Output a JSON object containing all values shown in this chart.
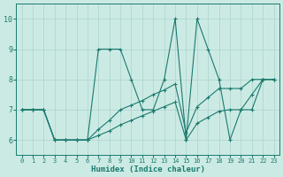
{
  "xlabel": "Humidex (Indice chaleur)",
  "xlim": [
    -0.5,
    23.5
  ],
  "ylim": [
    5.5,
    10.5
  ],
  "yticks": [
    6,
    7,
    8,
    9,
    10
  ],
  "xticks": [
    0,
    1,
    2,
    3,
    4,
    5,
    6,
    7,
    8,
    9,
    10,
    11,
    12,
    13,
    14,
    15,
    16,
    17,
    18,
    19,
    20,
    21,
    22,
    23
  ],
  "bg_color": "#cceae4",
  "line_color": "#1a7a6e",
  "grid_color": "#aad4cc",
  "line1_x": [
    0,
    1,
    2,
    3,
    4,
    5,
    6,
    7,
    8,
    9,
    10,
    11,
    12,
    13,
    14,
    15,
    16,
    17,
    18,
    19,
    20,
    21,
    22,
    23
  ],
  "line1_y": [
    7,
    7,
    7,
    6,
    6,
    6,
    6,
    9,
    9,
    9,
    8,
    7,
    7,
    8,
    10,
    6,
    10,
    9,
    8,
    6,
    7,
    7,
    8,
    8
  ],
  "line2_x": [
    0,
    1,
    2,
    3,
    4,
    5,
    6,
    7,
    8,
    9,
    10,
    11,
    12,
    13,
    14,
    15,
    16,
    17,
    18,
    19,
    20,
    21,
    22,
    23
  ],
  "line2_y": [
    7,
    7,
    7,
    6,
    6,
    6,
    6,
    6.15,
    6.3,
    6.5,
    6.65,
    6.8,
    6.95,
    7.1,
    7.25,
    6.0,
    6.55,
    6.75,
    6.95,
    7.0,
    7.0,
    7.5,
    8.0,
    8.0
  ],
  "line3_x": [
    0,
    1,
    2,
    3,
    4,
    5,
    6,
    7,
    8,
    9,
    10,
    11,
    12,
    13,
    14,
    15,
    16,
    17,
    18,
    19,
    20,
    21,
    22,
    23
  ],
  "line3_y": [
    7,
    7,
    7,
    6,
    6,
    6,
    6,
    6.35,
    6.65,
    7.0,
    7.15,
    7.3,
    7.5,
    7.65,
    7.85,
    6.25,
    7.1,
    7.4,
    7.7,
    7.7,
    7.7,
    8.0,
    8.0,
    8.0
  ]
}
